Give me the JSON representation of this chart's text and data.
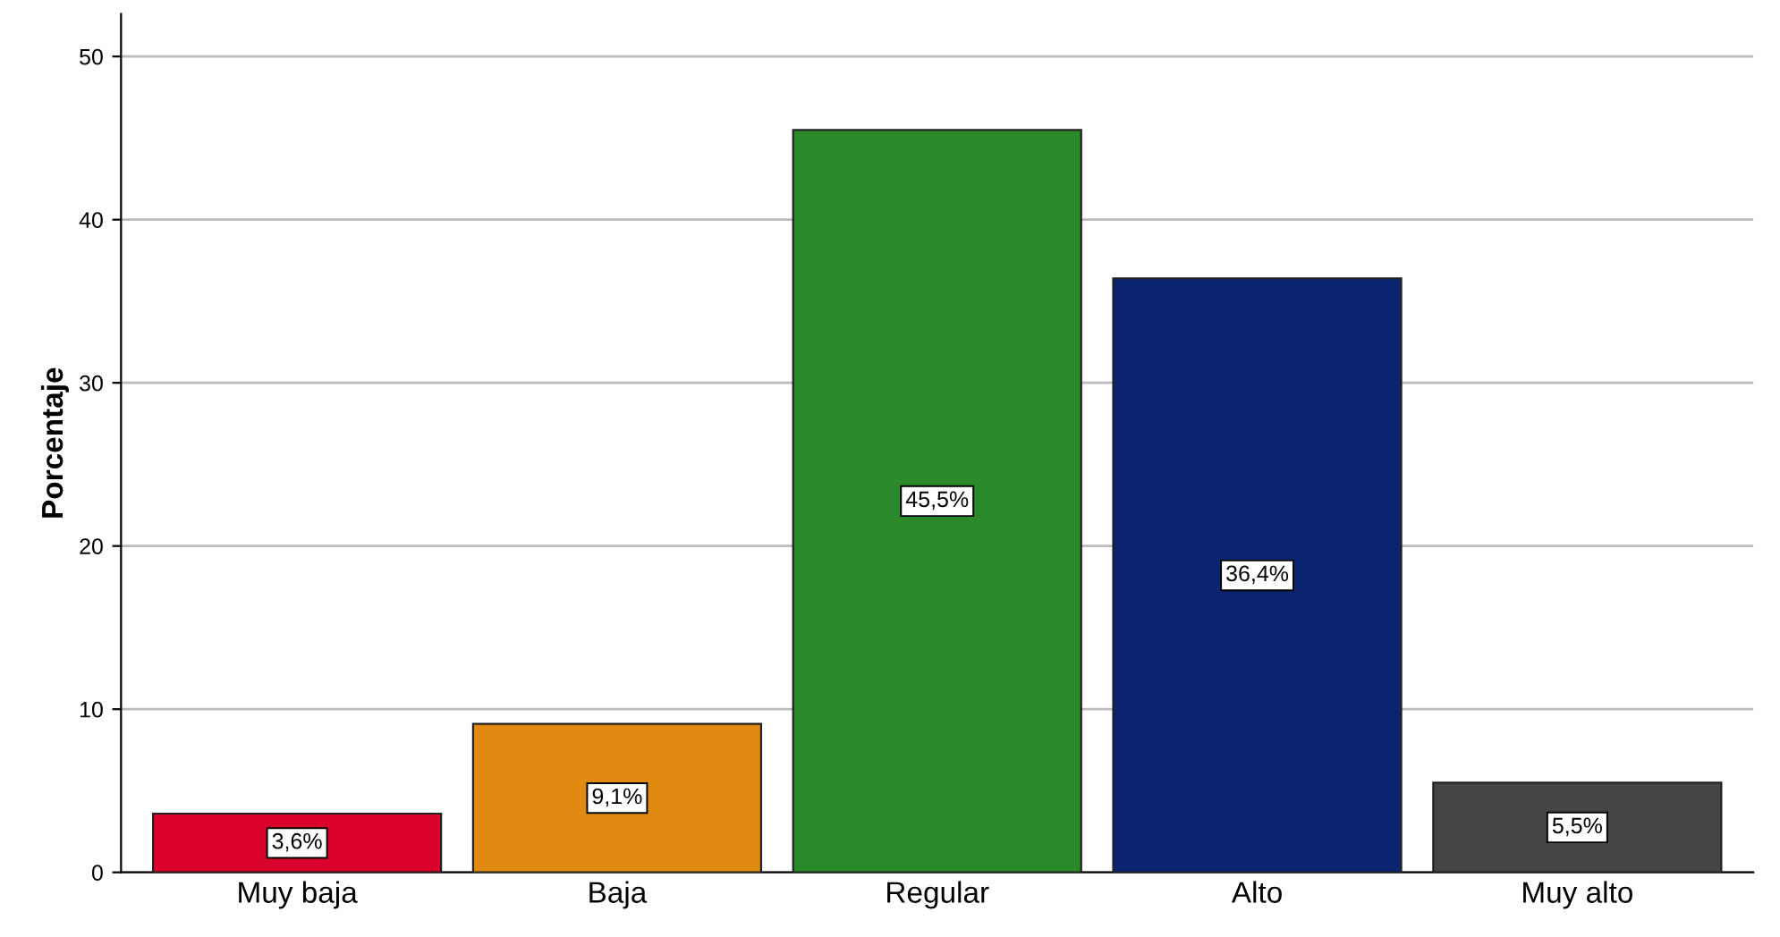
{
  "chart_data": {
    "type": "bar",
    "ylabel": "Porcentaje",
    "categories": [
      "Muy baja",
      "Baja",
      "Regular",
      "Alto",
      "Muy alto"
    ],
    "values": [
      3.6,
      9.1,
      45.5,
      36.4,
      5.5
    ],
    "colors": [
      "#d9002c",
      "#e08a12",
      "#2a8a2a",
      "#0a246f",
      "#454545"
    ],
    "value_labels": [
      "3,6%",
      "9,1%",
      "45,5%",
      "36,4%",
      "5,5%"
    ],
    "ylim": [
      0,
      52.6
    ],
    "yticks": [
      0,
      10,
      20,
      30,
      40,
      50
    ],
    "grid": "y",
    "legend": false
  }
}
